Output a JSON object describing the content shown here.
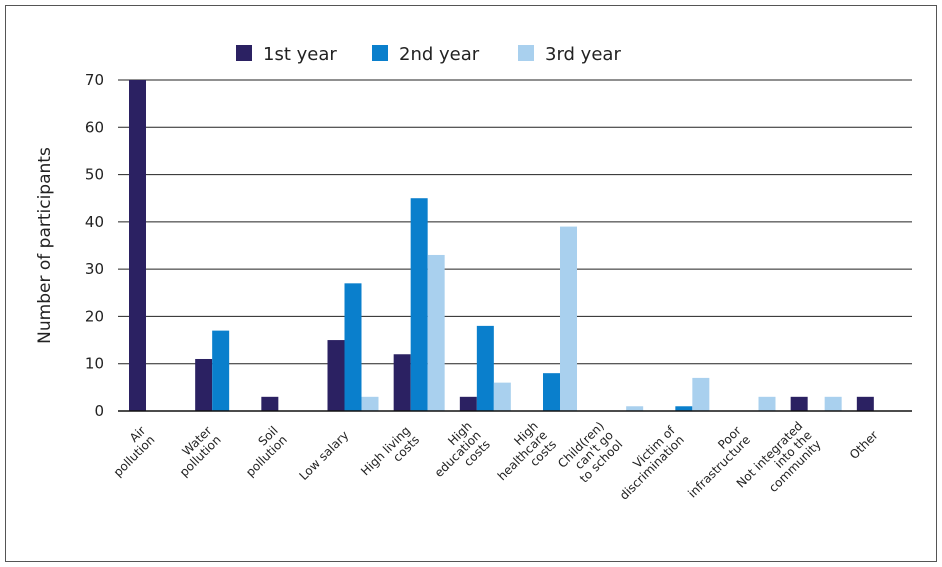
{
  "chart_data": {
    "type": "bar",
    "title": "",
    "xlabel": "",
    "ylabel": "Number of participants",
    "ylim": [
      0,
      70
    ],
    "yticks": [
      0,
      10,
      20,
      30,
      40,
      50,
      60,
      70
    ],
    "grid": true,
    "legend_position": "top",
    "categories": [
      [
        "Air",
        "pollution"
      ],
      [
        "Water",
        "pollution"
      ],
      [
        "Soil",
        "pollution"
      ],
      [
        "Low salary"
      ],
      [
        "High living",
        "costs"
      ],
      [
        "High",
        "education",
        "costs"
      ],
      [
        "High",
        "healthcare",
        "costs"
      ],
      [
        "Child(ren)",
        "can't go",
        "to school"
      ],
      [
        "Victim of",
        "discrimination"
      ],
      [
        "Poor",
        "infrastructure"
      ],
      [
        "Not integrated",
        "into the",
        "community"
      ],
      [
        "Other"
      ]
    ],
    "series": [
      {
        "name": "1st year",
        "color": "#2b2162",
        "values": [
          70,
          11,
          3,
          15,
          12,
          3,
          0,
          0,
          0,
          0,
          3,
          3
        ]
      },
      {
        "name": "2nd year",
        "color": "#0a7fcc",
        "values": [
          0,
          17,
          0,
          27,
          45,
          18,
          8,
          0,
          1,
          0,
          0,
          0
        ]
      },
      {
        "name": "3rd year",
        "color": "#a9d0ee",
        "values": [
          0,
          0,
          0,
          3,
          33,
          6,
          39,
          1,
          7,
          3,
          3,
          0
        ]
      }
    ]
  }
}
